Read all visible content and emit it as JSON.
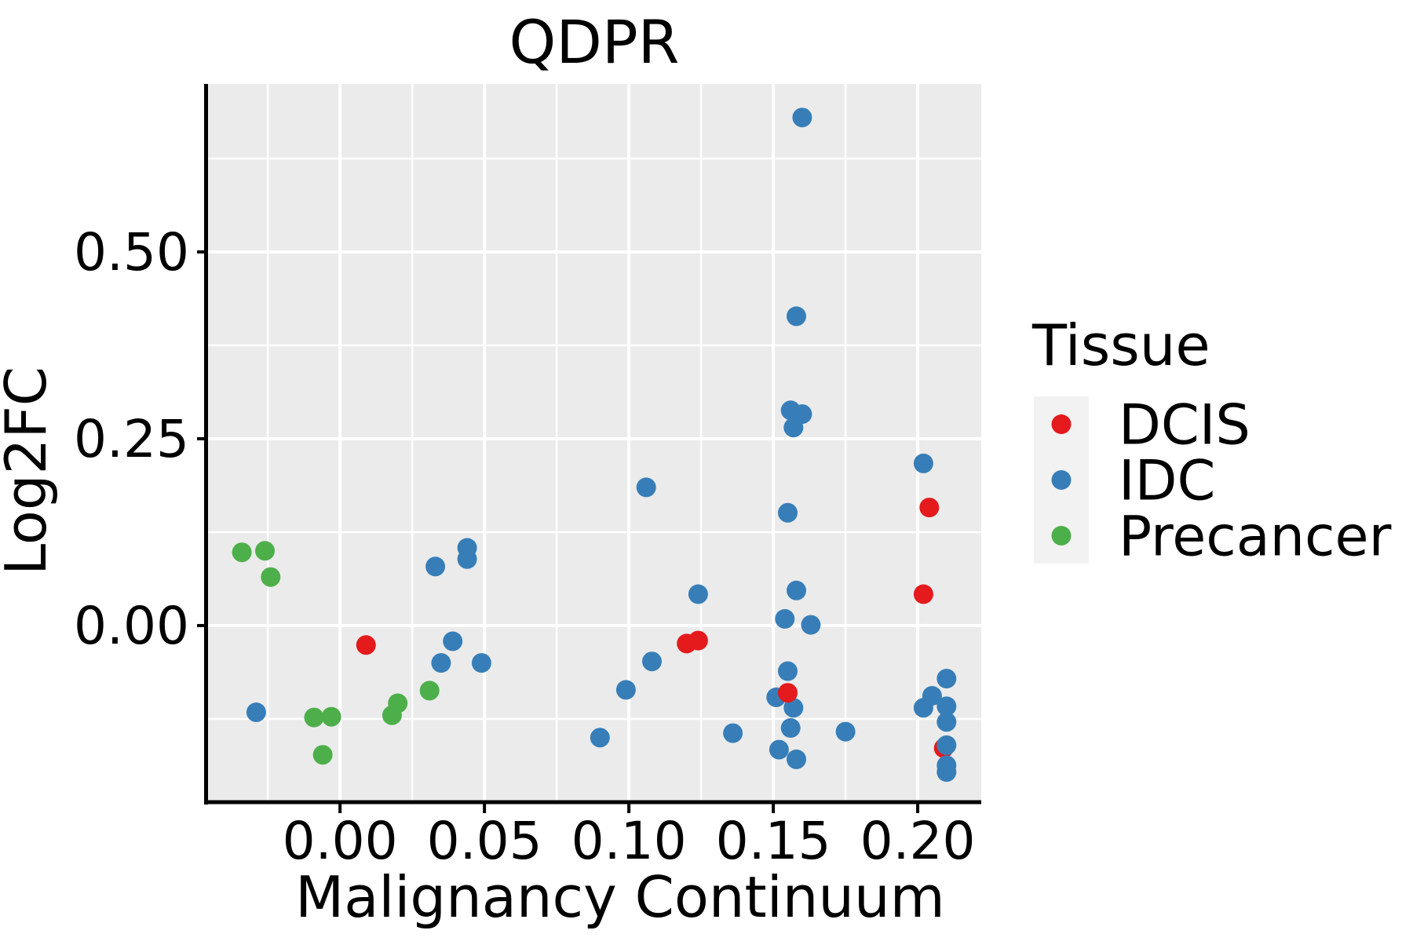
{
  "chart_data": {
    "type": "scatter",
    "title": "QDPR",
    "xlabel": "Malignancy Continuum",
    "ylabel": "Log2FC",
    "x_ticks": [
      0.0,
      0.05,
      0.1,
      0.15,
      0.2
    ],
    "y_ticks": [
      0.0,
      0.25,
      0.5
    ],
    "xlim": [
      -0.0457,
      0.222
    ],
    "ylim": [
      -0.2363,
      0.7248
    ],
    "grid": "major-and-minor-white-on-gray",
    "legend_position": "right",
    "panel_background": "#EBEBEB",
    "legend_key_background": "#F2F2F2",
    "legend": {
      "title": "Tissue",
      "entries": [
        {
          "label": "DCIS",
          "color": "#E41A1C"
        },
        {
          "label": "IDC",
          "color": "#377EB8"
        },
        {
          "label": "Precancer",
          "color": "#4DAF4A"
        }
      ]
    },
    "series": [
      {
        "name": "DCIS",
        "color": "#E41A1C",
        "points": [
          [
            0.009,
            -0.026
          ],
          [
            0.12,
            -0.024
          ],
          [
            0.124,
            -0.02
          ],
          [
            0.155,
            -0.09
          ],
          [
            0.202,
            0.042
          ],
          [
            0.204,
            0.158
          ],
          [
            0.209,
            -0.164,
            0
          ]
        ]
      },
      {
        "name": "IDC",
        "color": "#377EB8",
        "points": [
          [
            -0.029,
            -0.116
          ],
          [
            0.033,
            0.079
          ],
          [
            0.044,
            0.104
          ],
          [
            0.044,
            0.089
          ],
          [
            0.039,
            -0.021
          ],
          [
            0.035,
            -0.05
          ],
          [
            0.049,
            -0.05
          ],
          [
            0.09,
            -0.15
          ],
          [
            0.099,
            -0.086
          ],
          [
            0.106,
            0.185
          ],
          [
            0.108,
            -0.048
          ],
          [
            0.124,
            0.042
          ],
          [
            0.136,
            -0.144
          ],
          [
            0.151,
            -0.096
          ],
          [
            0.152,
            -0.166
          ],
          [
            0.154,
            0.009
          ],
          [
            0.155,
            0.151
          ],
          [
            0.155,
            -0.061
          ],
          [
            0.156,
            0.288
          ],
          [
            0.156,
            -0.137
          ],
          [
            0.157,
            0.265
          ],
          [
            0.157,
            -0.11
          ],
          [
            0.158,
            0.414
          ],
          [
            0.158,
            0.047
          ],
          [
            0.158,
            -0.179
          ],
          [
            0.16,
            0.68
          ],
          [
            0.16,
            0.283
          ],
          [
            0.163,
            0.001
          ],
          [
            0.175,
            -0.142
          ],
          [
            0.202,
            0.217
          ],
          [
            0.202,
            -0.11
          ],
          [
            0.205,
            -0.094
          ],
          [
            0.21,
            -0.071
          ],
          [
            0.21,
            -0.108
          ],
          [
            0.21,
            -0.129
          ],
          [
            0.21,
            -0.16
          ],
          [
            0.21,
            -0.187
          ],
          [
            0.21,
            -0.196
          ]
        ]
      },
      {
        "name": "Precancer",
        "color": "#4DAF4A",
        "points": [
          [
            -0.034,
            0.098
          ],
          [
            -0.026,
            0.1
          ],
          [
            -0.024,
            0.065
          ],
          [
            -0.009,
            -0.123
          ],
          [
            -0.006,
            -0.173
          ],
          [
            -0.003,
            -0.122
          ],
          [
            0.018,
            -0.12
          ],
          [
            0.02,
            -0.104
          ],
          [
            0.031,
            -0.087
          ]
        ]
      }
    ]
  }
}
